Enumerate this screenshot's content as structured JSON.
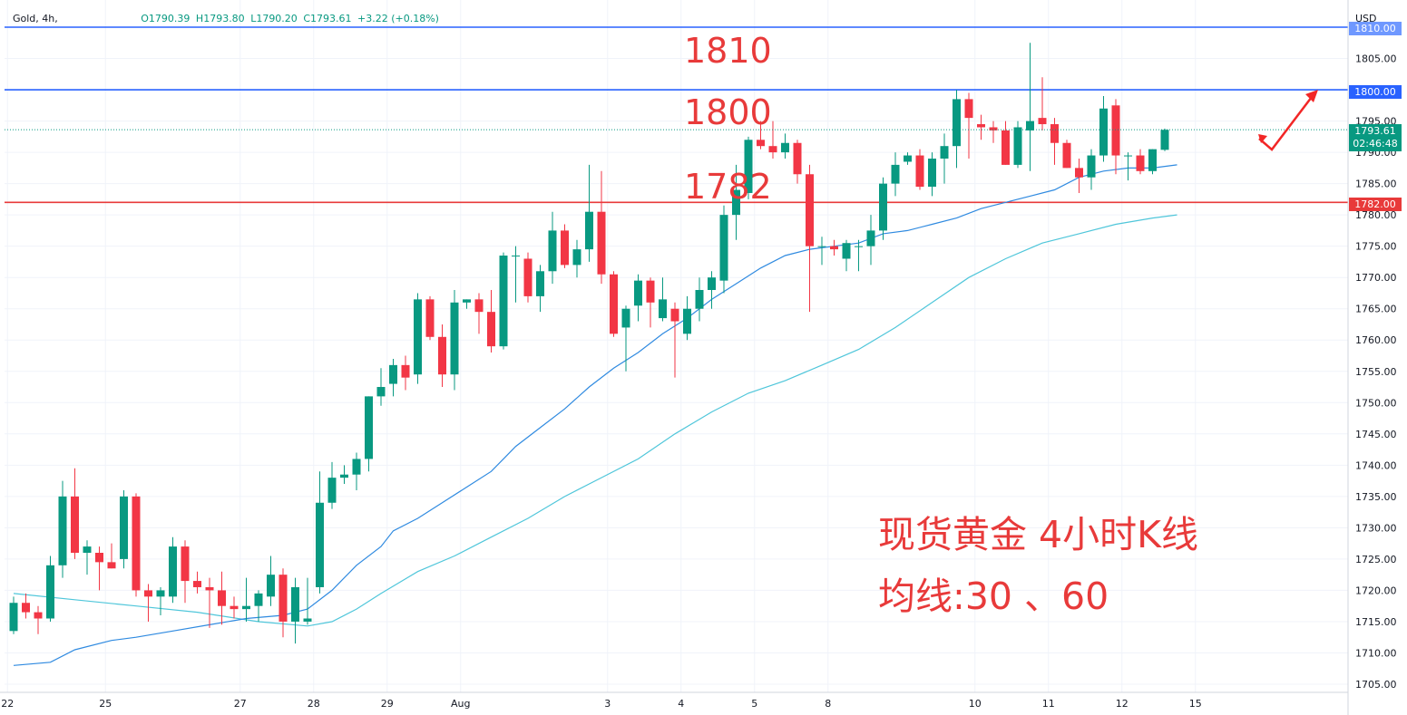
{
  "legend": {
    "symbol": "Gold, 4h,",
    "open": "O1790.39",
    "high": "H1793.80",
    "low": "L1790.20",
    "close": "C1793.61",
    "change": "+3.22 (+0.18%)"
  },
  "currency": "USD",
  "annotations": {
    "level_1810": "1810",
    "level_1800": "1800",
    "level_1782": "1782",
    "title_line1": "现货黄金 4小时K线",
    "title_line2": "均线:30 、60"
  },
  "price_tags": {
    "top": "1810.00",
    "blue": "1800.00",
    "red": "1782.00",
    "last_price": "1793.61",
    "countdown": "02:46:48"
  },
  "colors": {
    "up": "#089981",
    "down": "#f23645",
    "ma30": "#2f8ae0",
    "ma60": "#4fc6da",
    "resistance": "#2962ff",
    "support": "#e83a3a",
    "annotation": "#e83a3a"
  },
  "chart_data": {
    "type": "candlestick",
    "timeframe": "4h",
    "ylim": [
      1701,
      1814
    ],
    "y_ticks": [
      1705,
      1710,
      1715,
      1720,
      1725,
      1730,
      1735,
      1740,
      1745,
      1750,
      1755,
      1760,
      1765,
      1770,
      1775,
      1780,
      1785,
      1790,
      1795,
      1805
    ],
    "x_ticks": [
      {
        "label": "22",
        "i": -0.5
      },
      {
        "label": "25",
        "i": 7.5
      },
      {
        "label": "27",
        "i": 18.5
      },
      {
        "label": "28",
        "i": 24.5
      },
      {
        "label": "29",
        "i": 30.5
      },
      {
        "label": "Aug",
        "i": 36.5
      },
      {
        "label": "3",
        "i": 48.5
      },
      {
        "label": "4",
        "i": 54.5
      },
      {
        "label": "5",
        "i": 60.5
      },
      {
        "label": "8",
        "i": 66.5
      },
      {
        "label": "10",
        "i": 78.5
      },
      {
        "label": "11",
        "i": 84.5
      },
      {
        "label": "12",
        "i": 90.5
      },
      {
        "label": "15",
        "i": 96.5
      }
    ],
    "horizontal_lines": [
      {
        "value": 1810,
        "color": "#2962ff"
      },
      {
        "value": 1800,
        "color": "#2962ff"
      },
      {
        "value": 1782,
        "color": "#e83a3a"
      }
    ],
    "last_price": 1793.61,
    "candles": [
      [
        1713.5,
        1719.0,
        1713.0,
        1718.0
      ],
      [
        1718.0,
        1719.5,
        1715.5,
        1716.5
      ],
      [
        1716.5,
        1717.5,
        1713.0,
        1715.5
      ],
      [
        1715.5,
        1725.5,
        1715.0,
        1724.0
      ],
      [
        1724.0,
        1737.5,
        1722.0,
        1735.0
      ],
      [
        1735.0,
        1739.5,
        1725.0,
        1726.0
      ],
      [
        1726.0,
        1728.0,
        1722.5,
        1727.0
      ],
      [
        1726.0,
        1727.0,
        1720.0,
        1724.5
      ],
      [
        1724.5,
        1727.5,
        1723.5,
        1723.5
      ],
      [
        1725.0,
        1736.0,
        1723.5,
        1735.0
      ],
      [
        1735.0,
        1735.5,
        1719.0,
        1720.0
      ],
      [
        1720.0,
        1721.0,
        1715.0,
        1719.0
      ],
      [
        1719.0,
        1720.5,
        1716.0,
        1720.0
      ],
      [
        1719.0,
        1728.5,
        1718.0,
        1727.0
      ],
      [
        1727.0,
        1728.0,
        1718.0,
        1721.5
      ],
      [
        1721.5,
        1723.0,
        1719.5,
        1720.5
      ],
      [
        1720.5,
        1722.0,
        1714.0,
        1720.0
      ],
      [
        1720.0,
        1723.0,
        1714.5,
        1717.5
      ],
      [
        1717.5,
        1719.0,
        1715.5,
        1717.0
      ],
      [
        1717.0,
        1722.0,
        1715.0,
        1717.5
      ],
      [
        1717.5,
        1720.0,
        1715.0,
        1719.5
      ],
      [
        1719.0,
        1725.5,
        1717.5,
        1722.5
      ],
      [
        1722.5,
        1723.5,
        1712.5,
        1715.0
      ],
      [
        1715.0,
        1722.0,
        1711.5,
        1720.5
      ],
      [
        1715.0,
        1722.0,
        1714.5,
        1715.5
      ],
      [
        1720.5,
        1739.0,
        1719.5,
        1734.0
      ],
      [
        1734.0,
        1740.5,
        1733.0,
        1738.0
      ],
      [
        1738.0,
        1740.0,
        1737.0,
        1738.5
      ],
      [
        1738.5,
        1742.0,
        1736.0,
        1741.0
      ],
      [
        1741.0,
        1751.0,
        1739.0,
        1751.0
      ],
      [
        1751.0,
        1755.5,
        1749.5,
        1752.5
      ],
      [
        1753.0,
        1757.0,
        1751.0,
        1756.0
      ],
      [
        1756.0,
        1757.5,
        1752.0,
        1754.0
      ],
      [
        1754.5,
        1767.5,
        1753.0,
        1766.5
      ],
      [
        1766.5,
        1767.0,
        1760.0,
        1760.5
      ],
      [
        1760.5,
        1762.5,
        1752.5,
        1754.5
      ],
      [
        1754.5,
        1768.0,
        1752.0,
        1766.0
      ],
      [
        1766.0,
        1766.5,
        1765.0,
        1766.5
      ],
      [
        1766.5,
        1767.5,
        1761.0,
        1764.5
      ],
      [
        1764.5,
        1768.0,
        1758.0,
        1759.0
      ],
      [
        1759.0,
        1774.0,
        1758.5,
        1773.5
      ],
      [
        1773.5,
        1775.0,
        1766.0,
        1773.5
      ],
      [
        1773.0,
        1774.0,
        1766.0,
        1767.0
      ],
      [
        1767.0,
        1772.0,
        1764.5,
        1771.0
      ],
      [
        1771.0,
        1780.5,
        1769.0,
        1777.5
      ],
      [
        1777.5,
        1778.5,
        1771.5,
        1772.0
      ],
      [
        1772.0,
        1776.0,
        1770.0,
        1774.5
      ],
      [
        1774.5,
        1788.0,
        1772.5,
        1780.5
      ],
      [
        1780.5,
        1787.0,
        1769.0,
        1770.5
      ],
      [
        1770.5,
        1771.0,
        1760.5,
        1761.0
      ],
      [
        1762.0,
        1765.5,
        1755.0,
        1765.0
      ],
      [
        1765.5,
        1770.5,
        1763.0,
        1769.5
      ],
      [
        1769.5,
        1770.0,
        1762.0,
        1766.0
      ],
      [
        1763.5,
        1770.0,
        1763.0,
        1766.5
      ],
      [
        1765.0,
        1766.0,
        1754.0,
        1763.0
      ],
      [
        1761.0,
        1767.0,
        1760.0,
        1765.0
      ],
      [
        1765.0,
        1770.0,
        1763.0,
        1768.0
      ],
      [
        1768.0,
        1771.0,
        1765.0,
        1770.0
      ],
      [
        1769.5,
        1781.5,
        1767.5,
        1780.0
      ],
      [
        1780.0,
        1788.0,
        1776.0,
        1784.0
      ],
      [
        1783.5,
        1792.5,
        1782.5,
        1792.0
      ],
      [
        1792.0,
        1795.0,
        1790.5,
        1791.0
      ],
      [
        1791.0,
        1795.0,
        1789.0,
        1790.0
      ],
      [
        1790.0,
        1793.0,
        1789.0,
        1791.5
      ],
      [
        1791.5,
        1792.0,
        1785.0,
        1786.5
      ],
      [
        1786.5,
        1788.0,
        1764.5,
        1775.0
      ],
      [
        1775.0,
        1776.5,
        1772.0,
        1775.0
      ],
      [
        1775.0,
        1776.0,
        1773.5,
        1774.5
      ],
      [
        1773.0,
        1776.0,
        1771.0,
        1775.5
      ],
      [
        1775.0,
        1776.0,
        1771.0,
        1775.0
      ],
      [
        1775.0,
        1780.0,
        1772.0,
        1777.5
      ],
      [
        1777.5,
        1786.0,
        1776.0,
        1785.0
      ],
      [
        1785.0,
        1790.0,
        1783.0,
        1788.0
      ],
      [
        1788.5,
        1790.0,
        1788.0,
        1789.5
      ],
      [
        1789.5,
        1790.5,
        1784.0,
        1784.5
      ],
      [
        1784.5,
        1790.0,
        1783.0,
        1789.0
      ],
      [
        1789.0,
        1793.0,
        1785.0,
        1791.0
      ],
      [
        1791.0,
        1800.0,
        1787.5,
        1798.5
      ],
      [
        1798.5,
        1799.5,
        1789.0,
        1795.5
      ],
      [
        1794.5,
        1796.0,
        1792.0,
        1794.0
      ],
      [
        1794.0,
        1795.0,
        1791.5,
        1793.5
      ],
      [
        1793.5,
        1795.0,
        1788.0,
        1788.0
      ],
      [
        1788.0,
        1795.0,
        1787.5,
        1794.0
      ],
      [
        1793.5,
        1807.5,
        1787.0,
        1795.0
      ],
      [
        1795.5,
        1802.0,
        1793.5,
        1794.5
      ],
      [
        1794.5,
        1795.5,
        1788.0,
        1791.5
      ],
      [
        1791.5,
        1792.0,
        1787.5,
        1787.5
      ],
      [
        1787.5,
        1789.0,
        1783.5,
        1786.0
      ],
      [
        1786.0,
        1790.5,
        1784.0,
        1789.5
      ],
      [
        1789.5,
        1799.0,
        1788.5,
        1797.0
      ],
      [
        1797.5,
        1798.5,
        1786.5,
        1789.5
      ],
      [
        1789.5,
        1790.0,
        1785.5,
        1789.5
      ],
      [
        1789.5,
        1790.5,
        1786.5,
        1787.0
      ],
      [
        1787.0,
        1790.5,
        1786.5,
        1790.5
      ],
      [
        1790.4,
        1793.8,
        1790.2,
        1793.6
      ]
    ],
    "ma30": [
      [
        0,
        1708.0
      ],
      [
        3,
        1708.5
      ],
      [
        5,
        1710.5
      ],
      [
        8,
        1712.0
      ],
      [
        10,
        1712.5
      ],
      [
        13,
        1713.5
      ],
      [
        16,
        1714.5
      ],
      [
        19,
        1715.5
      ],
      [
        22,
        1716.0
      ],
      [
        24,
        1717.0
      ],
      [
        26,
        1720.0
      ],
      [
        28,
        1724.0
      ],
      [
        30,
        1727.0
      ],
      [
        31,
        1729.5
      ],
      [
        33,
        1731.5
      ],
      [
        35,
        1734.0
      ],
      [
        37,
        1736.5
      ],
      [
        39,
        1739.0
      ],
      [
        41,
        1743.0
      ],
      [
        43,
        1746.0
      ],
      [
        45,
        1749.0
      ],
      [
        47,
        1752.5
      ],
      [
        49,
        1755.5
      ],
      [
        51,
        1758.0
      ],
      [
        53,
        1761.0
      ],
      [
        55,
        1763.5
      ],
      [
        57,
        1766.5
      ],
      [
        59,
        1769.0
      ],
      [
        61,
        1771.5
      ],
      [
        63,
        1773.5
      ],
      [
        65,
        1774.5
      ],
      [
        67,
        1775.0
      ],
      [
        69,
        1775.5
      ],
      [
        71,
        1777.0
      ],
      [
        73,
        1777.5
      ],
      [
        75,
        1778.5
      ],
      [
        77,
        1779.5
      ],
      [
        79,
        1781.0
      ],
      [
        81,
        1782.0
      ],
      [
        83,
        1783.0
      ],
      [
        85,
        1784.0
      ],
      [
        87,
        1786.0
      ],
      [
        89,
        1787.0
      ],
      [
        91,
        1787.5
      ],
      [
        93,
        1787.5
      ],
      [
        95,
        1788.0
      ]
    ],
    "ma60": [
      [
        0,
        1719.5
      ],
      [
        5,
        1718.5
      ],
      [
        10,
        1717.5
      ],
      [
        15,
        1716.5
      ],
      [
        20,
        1715.0
      ],
      [
        24,
        1714.3
      ],
      [
        26,
        1715.0
      ],
      [
        28,
        1717.0
      ],
      [
        30,
        1719.5
      ],
      [
        33,
        1723.0
      ],
      [
        36,
        1725.5
      ],
      [
        39,
        1728.5
      ],
      [
        42,
        1731.5
      ],
      [
        45,
        1735.0
      ],
      [
        48,
        1738.0
      ],
      [
        51,
        1741.0
      ],
      [
        54,
        1745.0
      ],
      [
        57,
        1748.5
      ],
      [
        60,
        1751.5
      ],
      [
        63,
        1753.5
      ],
      [
        66,
        1756.0
      ],
      [
        69,
        1758.5
      ],
      [
        72,
        1762.0
      ],
      [
        75,
        1766.0
      ],
      [
        78,
        1770.0
      ],
      [
        81,
        1773.0
      ],
      [
        84,
        1775.5
      ],
      [
        87,
        1777.0
      ],
      [
        90,
        1778.5
      ],
      [
        93,
        1779.5
      ],
      [
        95,
        1780.0
      ]
    ]
  }
}
